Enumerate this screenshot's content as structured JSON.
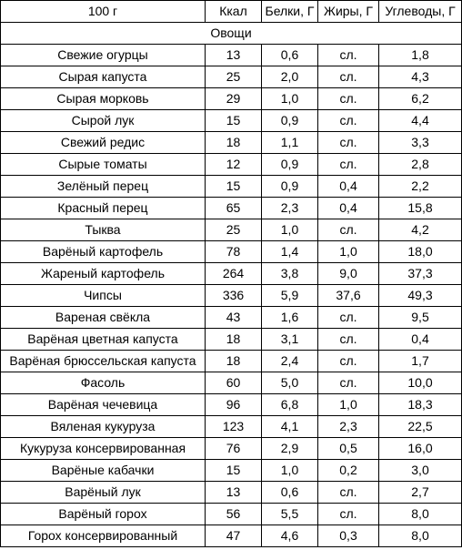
{
  "table": {
    "headers": [
      "100 г",
      "Ккал",
      "Белки, Г",
      "Жиры, Г",
      "Углеводы, Г"
    ],
    "section_title": "Овощи",
    "rows": [
      [
        "Свежие огурцы",
        "13",
        "0,6",
        "сл.",
        "1,8"
      ],
      [
        "Сырая капуста",
        "25",
        "2,0",
        "сл.",
        "4,3"
      ],
      [
        "Сырая морковь",
        "29",
        "1,0",
        "сл.",
        "6,2"
      ],
      [
        "Сырой лук",
        "15",
        "0,9",
        "сл.",
        "4,4"
      ],
      [
        "Свежий редис",
        "18",
        "1,1",
        "сл.",
        "3,3"
      ],
      [
        "Сырые томаты",
        "12",
        "0,9",
        "сл.",
        "2,8"
      ],
      [
        "Зелёный перец",
        "15",
        "0,9",
        "0,4",
        "2,2"
      ],
      [
        "Красный перец",
        "65",
        "2,3",
        "0,4",
        "15,8"
      ],
      [
        "Тыква",
        "25",
        "1,0",
        "сл.",
        "4,2"
      ],
      [
        "Варёный картофель",
        "78",
        "1,4",
        "1,0",
        "18,0"
      ],
      [
        "Жареный картофель",
        "264",
        "3,8",
        "9,0",
        "37,3"
      ],
      [
        "Чипсы",
        "336",
        "5,9",
        "37,6",
        "49,3"
      ],
      [
        "Вареная свёкла",
        "43",
        "1,6",
        "сл.",
        "9,5"
      ],
      [
        "Варёная цветная капуста",
        "18",
        "3,1",
        "сл.",
        "0,4"
      ],
      [
        "Варёная брюссельская капуста",
        "18",
        "2,4",
        "сл.",
        "1,7"
      ],
      [
        "Фасоль",
        "60",
        "5,0",
        "сл.",
        "10,0"
      ],
      [
        "Варёная чечевица",
        "96",
        "6,8",
        "1,0",
        "18,3"
      ],
      [
        "Вяленая кукуруза",
        "123",
        "4,1",
        "2,3",
        "22,5"
      ],
      [
        "Кукуруза консервированная",
        "76",
        "2,9",
        "0,5",
        "16,0"
      ],
      [
        "Варёные кабачки",
        "15",
        "1,0",
        "0,2",
        "3,0"
      ],
      [
        "Варёный лук",
        "13",
        "0,6",
        "сл.",
        "2,7"
      ],
      [
        "Варёный горох",
        "56",
        "5,5",
        "сл.",
        "8,0"
      ],
      [
        "Горох консервированный",
        "47",
        "4,6",
        "0,3",
        "8,0"
      ]
    ]
  }
}
